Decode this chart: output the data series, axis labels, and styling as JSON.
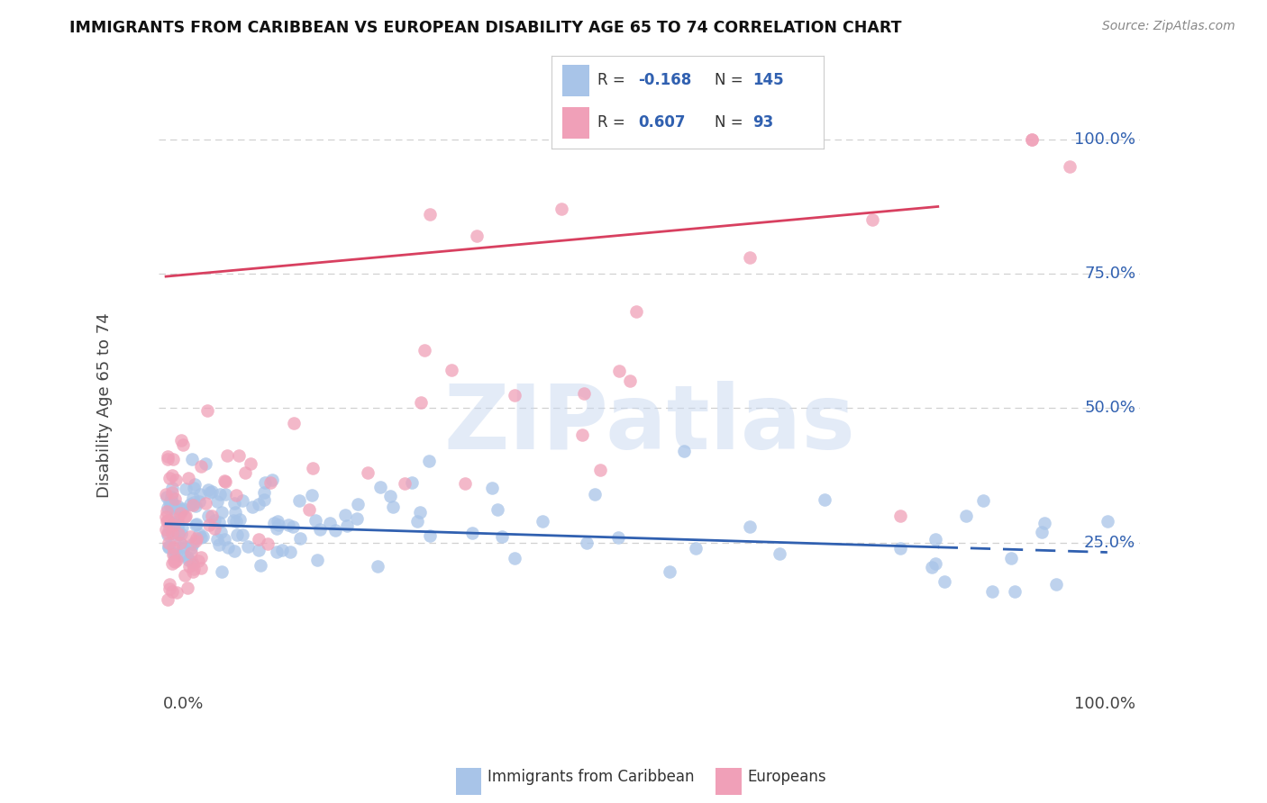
{
  "title": "IMMIGRANTS FROM CARIBBEAN VS EUROPEAN DISABILITY AGE 65 TO 74 CORRELATION CHART",
  "source": "Source: ZipAtlas.com",
  "ylabel": "Disability Age 65 to 74",
  "scatter_blue_color": "#a8c4e8",
  "scatter_pink_color": "#f0a0b8",
  "blue_line_color": "#3060b0",
  "pink_line_color": "#d84060",
  "blue_line_solid_end": 0.82,
  "blue_line_y0": 0.285,
  "blue_line_y1": 0.232,
  "pink_line_x0": 0.0,
  "pink_line_x1": 0.82,
  "pink_line_y0": 0.745,
  "pink_line_y1": 0.875,
  "watermark_text": "ZIPatlas",
  "watermark_color": "#c8d8f0",
  "grid_color": "#cccccc",
  "bg_color": "#ffffff",
  "legend_R1": "-0.168",
  "legend_N1": "145",
  "legend_R2": "0.607",
  "legend_N2": "93",
  "label1": "Immigrants from Caribbean",
  "label2": "Europeans",
  "yticks": [
    0.25,
    0.5,
    0.75,
    1.0
  ],
  "ytick_labels": [
    "25.0%",
    "50.0%",
    "75.0%",
    "100.0%"
  ],
  "xlim": [
    -0.008,
    1.035
  ],
  "ylim": [
    -0.07,
    1.08
  ]
}
